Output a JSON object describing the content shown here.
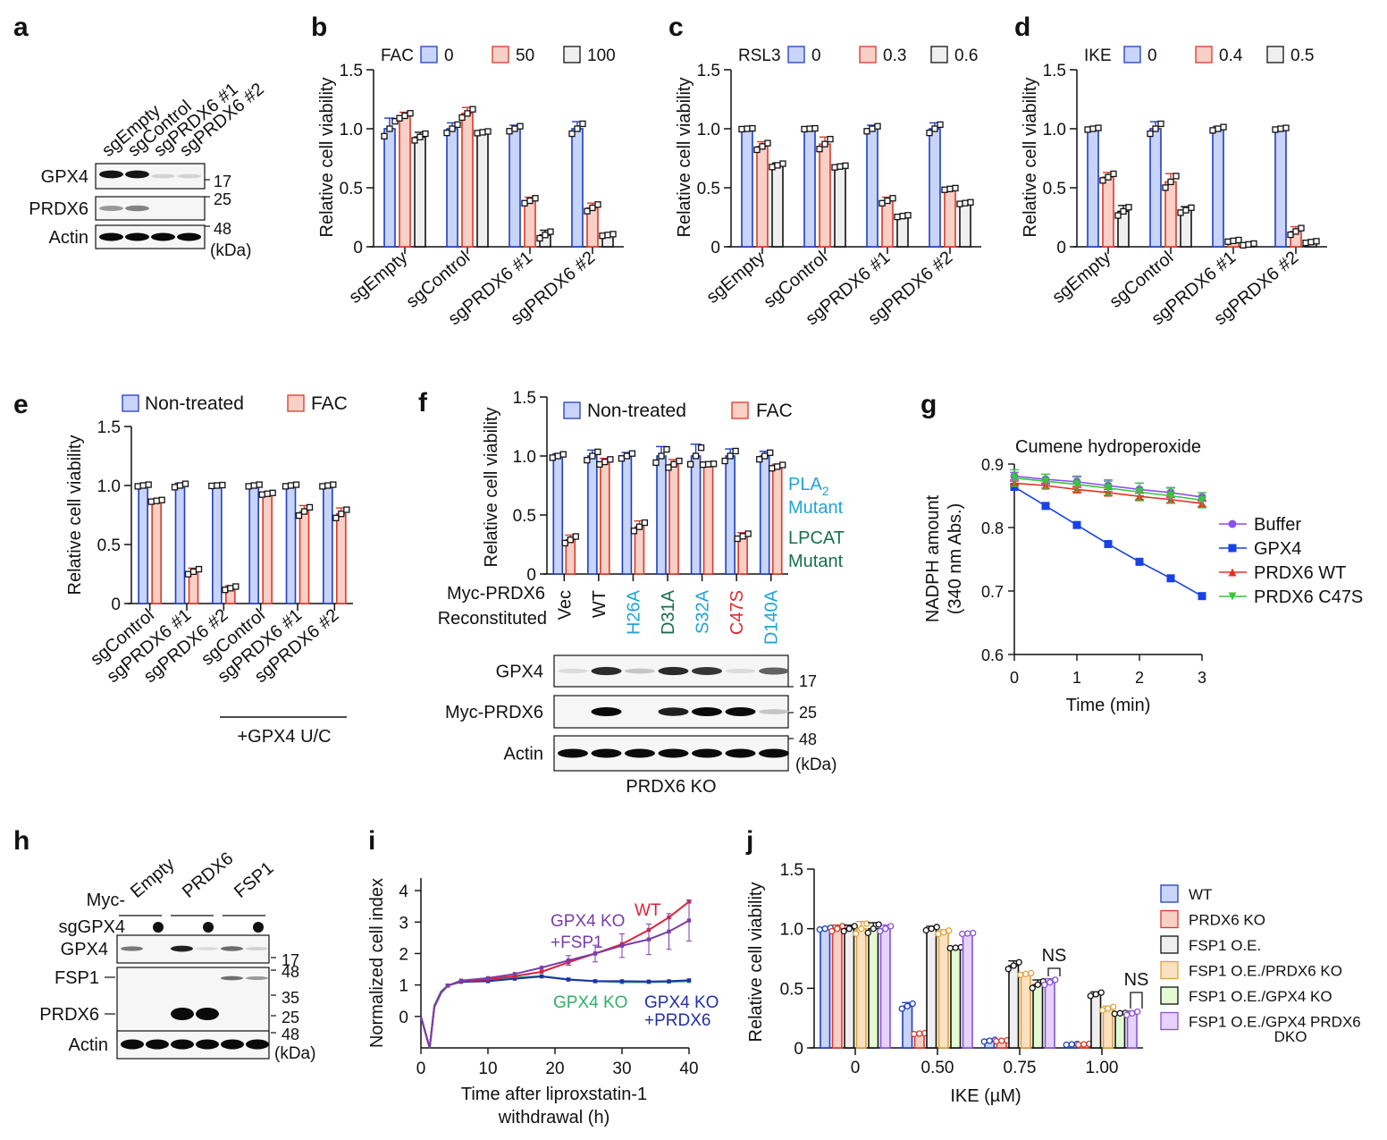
{
  "figure": {
    "panels": [
      "a",
      "b",
      "c",
      "d",
      "e",
      "f",
      "g",
      "h",
      "i",
      "j"
    ]
  },
  "colors": {
    "blue_fill": "#c8d4f8",
    "blue_edge": "#1f3fc0",
    "red_fill": "#f9cfc6",
    "red_edge": "#d93a2a",
    "grey_fill": "#efefef",
    "grey_edge": "#111111",
    "orange_fill": "#fbe1c2",
    "orange_edge": "#e0a23a",
    "green_fill": "#e3fad2",
    "green_edge": "#111111",
    "purple_fill": "#e6d3fa",
    "purple_edge": "#8a52d6",
    "pla2_mutant": "#1fa3d8",
    "lpcat_mutant": "#17704a",
    "c47s": "#e0282e"
  },
  "blots": {
    "a": {
      "letter": "a",
      "lanes": [
        "sgEmpty",
        "sgControl",
        "sgPRDX6 #1",
        "sgPRDX6 #2"
      ],
      "rows": [
        {
          "label": "GPX4",
          "intensity": [
            0.95,
            0.95,
            0.08,
            0.08
          ],
          "marker": "17"
        },
        {
          "label": "PRDX6",
          "intensity": [
            0.35,
            0.45,
            0,
            0
          ],
          "marker": "25"
        },
        {
          "label": "Actin",
          "intensity": [
            1,
            1,
            1,
            1
          ],
          "marker": "48"
        }
      ],
      "unit": "(kDa)"
    },
    "f": {
      "rows": [
        {
          "label": "GPX4",
          "intensity": [
            0.05,
            0.85,
            0.15,
            0.85,
            0.8,
            0.05,
            0.6
          ],
          "marker": "17"
        },
        {
          "label": "Myc-PRDX6",
          "intensity": [
            0,
            1,
            0,
            0.9,
            1,
            1,
            0.15
          ],
          "marker": "25"
        },
        {
          "label": "Actin",
          "intensity": [
            1,
            1,
            1,
            1,
            1,
            1,
            1
          ],
          "marker": "48"
        }
      ],
      "unit": "(kDa)",
      "footer": "PRDX6 KO"
    },
    "h": {
      "letter": "h",
      "myc_label": "Myc-",
      "groups": [
        "Empty",
        "PRDX6",
        "FSP1"
      ],
      "sg_label": "sgGPX4",
      "sg_marks": [
        "",
        "●",
        "",
        "●",
        "",
        "●"
      ],
      "rows": [
        {
          "label": "GPX4",
          "intensity": [
            0.5,
            0,
            0.9,
            0.05,
            0.55,
            0.1
          ]
        },
        {
          "label": "FSP1",
          "intensity": [
            0,
            0,
            0,
            0,
            0.55,
            0.35
          ]
        },
        {
          "label": "PRDX6",
          "intensity": [
            0,
            0,
            1,
            1,
            0,
            0
          ]
        },
        {
          "label": "Actin",
          "intensity": [
            1,
            1,
            1,
            1,
            1,
            1
          ]
        }
      ],
      "markers": [
        "17",
        "48",
        "35",
        "25",
        "48"
      ],
      "unit": "(kDa)"
    }
  },
  "chart_data": [
    {
      "id": "b",
      "letter": "b",
      "type": "bar",
      "legend_title": "FAC",
      "legend": [
        "0",
        "50",
        "100"
      ],
      "categories": [
        "sgEmpty",
        "sgControl",
        "sgPRDX6 #1",
        "sgPRDX6 #2"
      ],
      "ylabel": "Relative cell viability",
      "ylim": [
        0,
        1.5
      ],
      "yticks": [
        "0",
        "0.5",
        "1.0",
        "1.5"
      ],
      "series": [
        {
          "name": "0",
          "values": [
            1.0,
            1.0,
            1.0,
            1.0
          ],
          "err": [
            0.09,
            0.05,
            0.03,
            0.06
          ]
        },
        {
          "name": "50",
          "values": [
            1.11,
            1.13,
            0.39,
            0.33
          ],
          "err": [
            0.03,
            0.05,
            0.03,
            0.04
          ]
        },
        {
          "name": "100",
          "values": [
            0.93,
            0.97,
            0.1,
            0.1
          ],
          "err": [
            0.04,
            0.01,
            0.04,
            0.01
          ]
        }
      ]
    },
    {
      "id": "c",
      "letter": "c",
      "type": "bar",
      "legend_title": "RSL3",
      "legend": [
        "0",
        "0.3",
        "0.6"
      ],
      "categories": [
        "sgEmpty",
        "sgControl",
        "sgPRDX6 #1",
        "sgPRDX6 #2"
      ],
      "ylabel": "Relative cell viability",
      "ylim": [
        0,
        1.5
      ],
      "yticks": [
        "0",
        "0.5",
        "1.0",
        "1.5"
      ],
      "series": [
        {
          "name": "0",
          "values": [
            1.0,
            1.0,
            1.0,
            1.0
          ],
          "err": [
            0.005,
            0.005,
            0.03,
            0.05
          ]
        },
        {
          "name": "0.3",
          "values": [
            0.85,
            0.87,
            0.39,
            0.49
          ],
          "err": [
            0.04,
            0.06,
            0.03,
            0.01
          ]
        },
        {
          "name": "0.6",
          "values": [
            0.69,
            0.68,
            0.26,
            0.37
          ],
          "err": [
            0.02,
            0.01,
            0.01,
            0.01
          ]
        }
      ]
    },
    {
      "id": "d",
      "letter": "d",
      "type": "bar",
      "legend_title": "IKE",
      "legend": [
        "0",
        "0.4",
        "0.5"
      ],
      "categories": [
        "sgEmpty",
        "sgControl",
        "sgPRDX6 #1",
        "sgPRDX6 #2"
      ],
      "ylabel": "Relative cell viability",
      "ylim": [
        0,
        1.5
      ],
      "yticks": [
        "0",
        "0.5",
        "1.0",
        "1.5"
      ],
      "series": [
        {
          "name": "0",
          "values": [
            1.0,
            1.0,
            1.0,
            1.0
          ],
          "err": [
            0.01,
            0.06,
            0.02,
            0.01
          ]
        },
        {
          "name": "0.4",
          "values": [
            0.59,
            0.55,
            0.05,
            0.13
          ],
          "err": [
            0.04,
            0.07,
            0.01,
            0.04
          ]
        },
        {
          "name": "0.5",
          "values": [
            0.3,
            0.31,
            0.02,
            0.04
          ],
          "err": [
            0.05,
            0.03,
            0.01,
            0.01
          ]
        }
      ]
    },
    {
      "id": "e",
      "letter": "e",
      "type": "bar",
      "legend": [
        "Non-treated",
        "FAC"
      ],
      "categories": [
        "sgControl",
        "sgPRDX6 #1",
        "sgPRDX6 #2",
        "sgControl",
        "sgPRDX6 #1",
        "sgPRDX6 #2"
      ],
      "group_label": "+GPX4 U/C",
      "ylabel": "Relative cell viability",
      "ylim": [
        0,
        1.5
      ],
      "yticks": [
        "0",
        "0.5",
        "1.0",
        "1.5"
      ],
      "series": [
        {
          "name": "Non-treated",
          "values": [
            1.0,
            1.0,
            1.0,
            1.0,
            1.0,
            1.0
          ],
          "err": [
            0.01,
            0.02,
            0.005,
            0.01,
            0.01,
            0.01
          ]
        },
        {
          "name": "FAC",
          "values": [
            0.87,
            0.27,
            0.13,
            0.93,
            0.78,
            0.76
          ],
          "err": [
            0.01,
            0.03,
            0.02,
            0.01,
            0.05,
            0.05
          ]
        }
      ]
    },
    {
      "id": "f",
      "letter": "f",
      "type": "bar",
      "legend": [
        "Non-treated",
        "FAC"
      ],
      "axis_title_1": "Myc-PRDX6",
      "axis_title_2": "Reconstituted",
      "categories": [
        "Vec",
        "WT",
        "H26A",
        "D31A",
        "S32A",
        "C47S",
        "D140A"
      ],
      "category_colors": [
        "#111111",
        "#111111",
        "#1fa3d8",
        "#17704a",
        "#1fa3d8",
        "#e0282e",
        "#1fa3d8"
      ],
      "annotations": [
        {
          "text": "PLA",
          "sub": "2",
          "text2": "Mutant",
          "color": "#1fa3d8"
        },
        {
          "text": "LPCAT",
          "text2": "Mutant",
          "color": "#17704a"
        }
      ],
      "ylabel": "Relative cell viability",
      "ylim": [
        0,
        1.5
      ],
      "yticks": [
        "0",
        "0.5",
        "1.0",
        "1.5"
      ],
      "series": [
        {
          "name": "Non-treated",
          "values": [
            1.0,
            1.0,
            1.0,
            1.0,
            1.0,
            1.0,
            1.0
          ],
          "err": [
            0.02,
            0.05,
            0.03,
            0.08,
            0.1,
            0.06,
            0.04
          ]
        },
        {
          "name": "FAC",
          "values": [
            0.29,
            0.95,
            0.4,
            0.93,
            0.93,
            0.32,
            0.91
          ],
          "err": [
            0.04,
            0.03,
            0.05,
            0.04,
            0.005,
            0.03,
            0.02
          ]
        }
      ]
    },
    {
      "id": "g",
      "letter": "g",
      "type": "line",
      "title": "Cumene hydroperoxide",
      "xlabel": "Time (min)",
      "ylabel_1": "NADPH amount",
      "ylabel_2": "(340 nm Abs.)",
      "xlim": [
        0,
        3
      ],
      "ylim": [
        0.6,
        0.9
      ],
      "xticks": [
        "0",
        "1",
        "2",
        "3"
      ],
      "yticks": [
        "0.6",
        "0.7",
        "0.8",
        "0.9"
      ],
      "x": [
        0,
        0.5,
        1,
        1.5,
        2,
        2.5,
        3
      ],
      "series": [
        {
          "name": "Buffer",
          "color": "#8a4ff0",
          "marker": "circle",
          "values": [
            0.881,
            0.876,
            0.872,
            0.866,
            0.86,
            0.855,
            0.848
          ],
          "err": [
            0.006,
            0.008,
            0.009,
            0.009,
            0.01,
            0.008,
            0.007
          ]
        },
        {
          "name": "GPX4",
          "color": "#1841e6",
          "marker": "square",
          "values": [
            0.864,
            0.834,
            0.804,
            0.774,
            0.746,
            0.72,
            0.692
          ],
          "err": [
            0,
            0,
            0,
            0,
            0,
            0,
            0
          ]
        },
        {
          "name": "PRDX6 WT",
          "color": "#e8301e",
          "marker": "triangle-up",
          "values": [
            0.87,
            0.866,
            0.86,
            0.855,
            0.849,
            0.844,
            0.838
          ],
          "err": [
            0.003,
            0.004,
            0.005,
            0.005,
            0.005,
            0.005,
            0.005
          ]
        },
        {
          "name": "PRDX6 C47S",
          "color": "#35c83a",
          "marker": "triangle-down",
          "values": [
            0.878,
            0.873,
            0.868,
            0.862,
            0.856,
            0.85,
            0.843
          ],
          "err": [
            0.013,
            0.011,
            0.011,
            0.011,
            0.014,
            0.012,
            0.012
          ]
        }
      ]
    },
    {
      "id": "i",
      "letter": "i",
      "type": "line",
      "xlabel_1": "Time after liproxstatin-1",
      "xlabel_2": "withdrawal (h)",
      "ylabel": "Normalized cell index",
      "xlim": [
        0,
        40
      ],
      "ylim": [
        -1,
        4.4
      ],
      "xticks": [
        "0",
        "10",
        "20",
        "30",
        "40"
      ],
      "yticks": [
        "0",
        "1",
        "2",
        "3",
        "4"
      ],
      "series": [
        {
          "name": "WT",
          "color": "#e0203a",
          "points": [
            [
              0,
              0
            ],
            [
              1.3,
              -1.0
            ],
            [
              2,
              0.3
            ],
            [
              3,
              0.75
            ],
            [
              4,
              0.98
            ],
            [
              6,
              1.12
            ],
            [
              10,
              1.18
            ],
            [
              14,
              1.28
            ],
            [
              18,
              1.42
            ],
            [
              22,
              1.72
            ],
            [
              26,
              2.0
            ],
            [
              30,
              2.3
            ],
            [
              34,
              2.75
            ],
            [
              37,
              3.15
            ],
            [
              40,
              3.65
            ]
          ]
        },
        {
          "name": "GPX4 KO\n+FSP1",
          "label_1": "GPX4 KO",
          "label_2": "+FSP1",
          "color": "#7a3da8",
          "points": [
            [
              0,
              0
            ],
            [
              1.3,
              -1.0
            ],
            [
              2,
              0.3
            ],
            [
              3,
              0.75
            ],
            [
              4,
              0.98
            ],
            [
              6,
              1.14
            ],
            [
              10,
              1.22
            ],
            [
              14,
              1.35
            ],
            [
              18,
              1.55
            ],
            [
              22,
              1.78
            ],
            [
              26,
              2.0
            ],
            [
              30,
              2.25
            ],
            [
              34,
              2.45
            ],
            [
              37,
              2.7
            ],
            [
              40,
              3.05
            ]
          ],
          "err_from": 20,
          "err": 0.55
        },
        {
          "name": "GPX4 KO",
          "color": "#2fb06a",
          "points": [
            [
              0,
              0
            ],
            [
              1.3,
              -1.0
            ],
            [
              2,
              0.35
            ],
            [
              3,
              0.8
            ],
            [
              4,
              0.98
            ],
            [
              6,
              1.12
            ],
            [
              10,
              1.15
            ],
            [
              14,
              1.23
            ],
            [
              18,
              1.28
            ],
            [
              22,
              1.18
            ],
            [
              26,
              1.12
            ],
            [
              30,
              1.09
            ],
            [
              34,
              1.09
            ],
            [
              37,
              1.1
            ],
            [
              40,
              1.12
            ]
          ]
        },
        {
          "name": "GPX4 KO\n+PRDX6",
          "label_1": "GPX4 KO",
          "label_2": "+PRDX6",
          "color": "#2030a8",
          "points": [
            [
              0,
              0
            ],
            [
              1.3,
              -1.0
            ],
            [
              2,
              0.3
            ],
            [
              3,
              0.75
            ],
            [
              4,
              0.98
            ],
            [
              6,
              1.1
            ],
            [
              10,
              1.12
            ],
            [
              14,
              1.2
            ],
            [
              18,
              1.27
            ],
            [
              22,
              1.17
            ],
            [
              26,
              1.12
            ],
            [
              30,
              1.12
            ],
            [
              34,
              1.11
            ],
            [
              37,
              1.12
            ],
            [
              40,
              1.15
            ]
          ]
        }
      ]
    },
    {
      "id": "j",
      "letter": "j",
      "type": "bar",
      "xlabel": "IKE (µM)",
      "categories": [
        "0",
        "0.50",
        "0.75",
        "1.00"
      ],
      "ylabel": "Relative cell viability",
      "ylim": [
        0,
        1.5
      ],
      "yticks": [
        "0",
        "0.5",
        "1.0",
        "1.5"
      ],
      "legend": [
        "WT",
        "PRDX6 KO",
        "FSP1 O.E.",
        "FSP1 O.E./PRDX6 KO",
        "FSP1 O.E./GPX4 KO",
        "FSP1 O.E./GPX4 PRDX6",
        "DKO"
      ],
      "series": [
        {
          "name": "WT",
          "values": [
            1.0,
            0.35,
            0.06,
            0.03
          ],
          "err": [
            0.01,
            0.03,
            0.01,
            0.005
          ]
        },
        {
          "name": "PRDX6 KO",
          "values": [
            1.0,
            0.12,
            0.06,
            0.03
          ],
          "err": [
            0.03,
            0.005,
            0.005,
            0.005
          ]
        },
        {
          "name": "FSP1 O.E.",
          "values": [
            1.0,
            1.0,
            0.69,
            0.45
          ],
          "err": [
            0.03,
            0.02,
            0.04,
            0.02
          ]
        },
        {
          "name": "FSP1 O.E./PRDX6 KO",
          "values": [
            1.0,
            0.97,
            0.62,
            0.33
          ],
          "err": [
            0.06,
            0.02,
            0.01,
            0.02
          ]
        },
        {
          "name": "FSP1 O.E./GPX4 KO",
          "values": [
            1.0,
            0.84,
            0.53,
            0.29
          ],
          "err": [
            0.05,
            0.005,
            0.04,
            0.005
          ]
        },
        {
          "name": "FSP1 O.E./GPX4 PRDX6 DKO",
          "values": [
            1.0,
            0.96,
            0.55,
            0.29
          ],
          "err": [
            0.03,
            0.005,
            0.03,
            0.02
          ]
        }
      ],
      "annotations": [
        {
          "text": "NS",
          "category": 2
        },
        {
          "text": "NS",
          "category": 3
        }
      ]
    }
  ]
}
